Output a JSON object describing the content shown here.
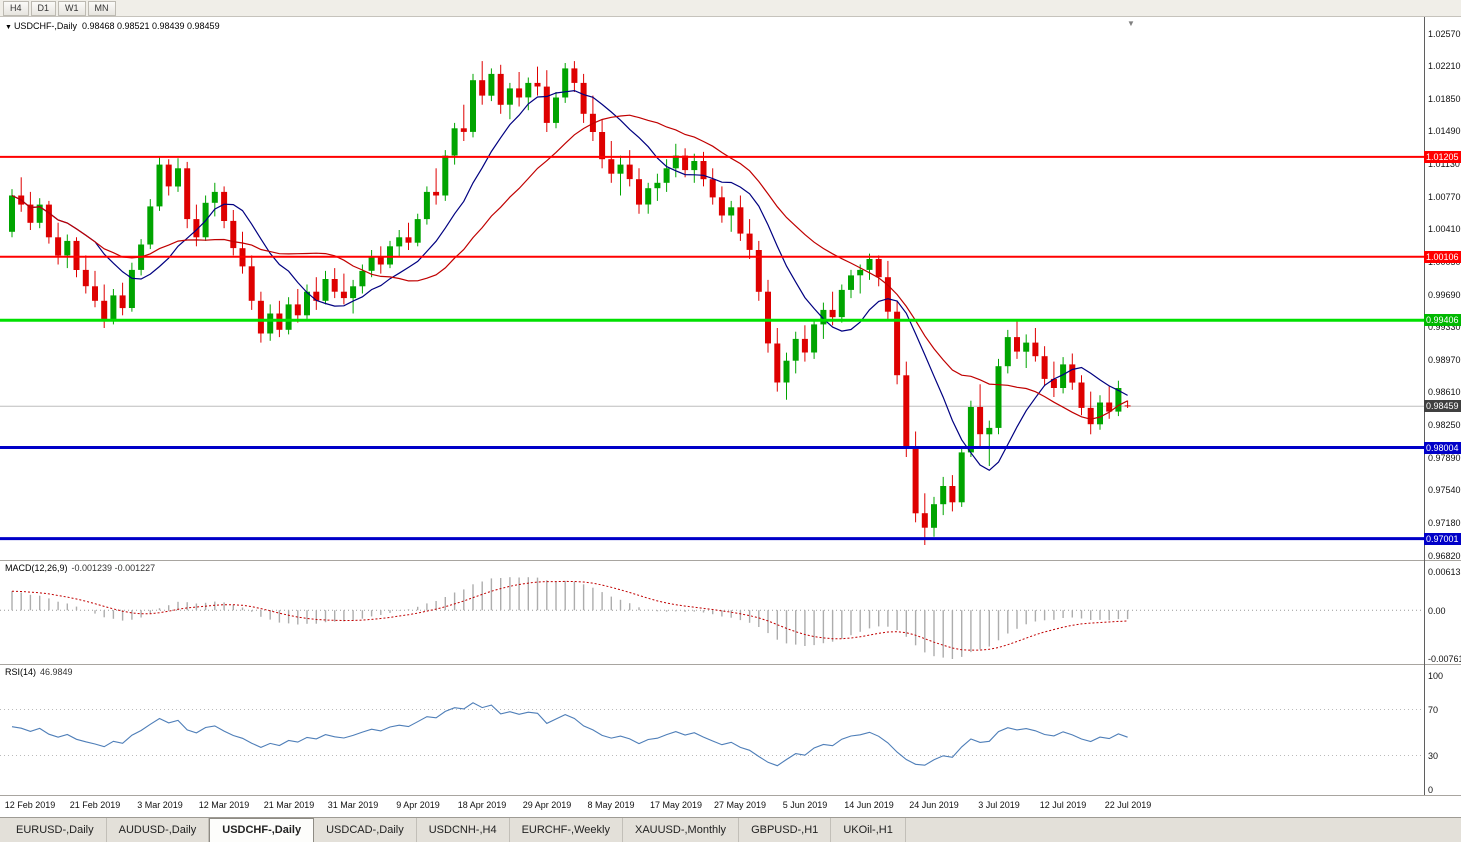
{
  "toolbar": {
    "timeframes": [
      "H4",
      "D1",
      "W1",
      "MN"
    ]
  },
  "main_chart": {
    "collapse_glyph": "▼",
    "shift_glyph": "▼",
    "title_symbol": "USDCHF-,Daily",
    "title_ohlc": "0.98468 0.98521 0.98439 0.98459",
    "up_color": "#00A400",
    "down_color": "#DE0000",
    "ma_fast": {
      "period": 10,
      "color": "#000080"
    },
    "ma_slow": {
      "period": 21,
      "color": "#C00000"
    },
    "price_axis": {
      "max": 1.0257,
      "min": 0.9682,
      "labels": [
        "1.02570",
        "1.02210",
        "1.01850",
        "1.01490",
        "1.01130",
        "1.00770",
        "1.00410",
        "1.00050",
        "0.99690",
        "0.99330",
        "0.98970",
        "0.98610",
        "0.98250",
        "0.97890",
        "0.97540",
        "0.97180",
        "0.96820"
      ]
    },
    "hlines": [
      {
        "price": 1.01205,
        "label": "1.01205",
        "color": "#FF0000",
        "badge_color": "#FF0000",
        "width": 2
      },
      {
        "price": 1.00106,
        "label": "1.00106",
        "color": "#FF0000",
        "badge_color": "#FF0000",
        "width": 2
      },
      {
        "price": 0.99406,
        "label": "0.99406",
        "color": "#00E000",
        "badge_color": "#00B800",
        "width": 3
      },
      {
        "price": 0.98004,
        "label": "0.98004",
        "color": "#0000C8",
        "badge_color": "#0000C8",
        "width": 3
      },
      {
        "price": 0.97001,
        "label": "0.97001",
        "color": "#0000C8",
        "badge_color": "#0000C8",
        "width": 3
      }
    ],
    "current_price": {
      "value": 0.98459,
      "label": "0.98459",
      "badge_color": "#404040",
      "line_color": "#BEBEBE"
    }
  },
  "macd_panel": {
    "label_name": "MACD(12,26,9)",
    "label_values": "-0.001239 -0.001227",
    "fast": 12,
    "slow": 26,
    "signal": 9,
    "scale": [
      "0.00613",
      "0.00",
      "-0.00761"
    ]
  },
  "rsi_panel": {
    "label_name": "RSI(14)",
    "label_value": "46.9849",
    "period": 14,
    "levels": [
      70,
      30
    ],
    "scale": [
      "100",
      "70",
      "30",
      "0"
    ]
  },
  "chart_data": {
    "type": "candlestick",
    "symbol": "USDCHF",
    "timeframe": "Daily",
    "title": "USDCHF-,Daily",
    "x_labels": [
      "12 Feb 2019",
      "21 Feb 2019",
      "3 Mar 2019",
      "12 Mar 2019",
      "21 Mar 2019",
      "31 Mar 2019",
      "9 Apr 2019",
      "18 Apr 2019",
      "29 Apr 2019",
      "8 May 2019",
      "17 May 2019",
      "27 May 2019",
      "5 Jun 2019",
      "14 Jun 2019",
      "24 Jun 2019",
      "3 Jul 2019",
      "12 Jul 2019",
      "22 Jul 2019"
    ],
    "x_label_indices": [
      2,
      9,
      16,
      23,
      30,
      37,
      44,
      51,
      58,
      65,
      72,
      79,
      86,
      93,
      100,
      107,
      114,
      121
    ],
    "ohlc_format": [
      "open",
      "high",
      "low",
      "close"
    ],
    "ohlc": [
      [
        1.0038,
        1.0085,
        1.0032,
        1.0078
      ],
      [
        1.0078,
        1.0098,
        1.006,
        1.0068
      ],
      [
        1.0068,
        1.0082,
        1.004,
        1.0048
      ],
      [
        1.0048,
        1.0075,
        1.0042,
        1.0068
      ],
      [
        1.0068,
        1.0072,
        1.0025,
        1.0032
      ],
      [
        1.0032,
        1.0048,
        1.0002,
        1.0012
      ],
      [
        1.0012,
        1.0035,
        0.9998,
        1.0028
      ],
      [
        1.0028,
        1.0032,
        0.9988,
        0.9996
      ],
      [
        0.9996,
        1.0012,
        0.997,
        0.9978
      ],
      [
        0.9978,
        0.9995,
        0.9955,
        0.9962
      ],
      [
        0.9962,
        0.998,
        0.9932,
        0.9942
      ],
      [
        0.9942,
        0.9975,
        0.9936,
        0.9968
      ],
      [
        0.9968,
        0.9982,
        0.9946,
        0.9954
      ],
      [
        0.9954,
        1.0004,
        0.995,
        0.9996
      ],
      [
        0.9996,
        1.003,
        0.999,
        1.0024
      ],
      [
        1.0024,
        1.0074,
        1.0019,
        1.0066
      ],
      [
        1.0066,
        1.0121,
        1.0061,
        1.0112
      ],
      [
        1.0112,
        1.0118,
        1.0078,
        1.0088
      ],
      [
        1.0088,
        1.0119,
        1.0082,
        1.0108
      ],
      [
        1.0108,
        1.0115,
        1.0042,
        1.0052
      ],
      [
        1.0052,
        1.0068,
        1.0022,
        1.0032
      ],
      [
        1.0032,
        1.0078,
        1.0028,
        1.007
      ],
      [
        1.007,
        1.0092,
        1.0055,
        1.0082
      ],
      [
        1.0082,
        1.0088,
        1.0042,
        1.005
      ],
      [
        1.005,
        1.0062,
        1.0012,
        1.002
      ],
      [
        1.002,
        1.0038,
        0.9992,
        1.0
      ],
      [
        1.0,
        1.0012,
        0.9952,
        0.9962
      ],
      [
        0.9962,
        0.9972,
        0.9916,
        0.9926
      ],
      [
        0.9926,
        0.9958,
        0.9918,
        0.9948
      ],
      [
        0.9948,
        0.9962,
        0.9922,
        0.993
      ],
      [
        0.993,
        0.9966,
        0.9925,
        0.9958
      ],
      [
        0.9958,
        0.9975,
        0.9938,
        0.9946
      ],
      [
        0.9946,
        0.998,
        0.994,
        0.9972
      ],
      [
        0.9972,
        0.9988,
        0.9952,
        0.9962
      ],
      [
        0.9962,
        0.9995,
        0.9958,
        0.9986
      ],
      [
        0.9986,
        0.9998,
        0.9965,
        0.9972
      ],
      [
        0.9972,
        0.9992,
        0.9958,
        0.9965
      ],
      [
        0.9965,
        0.9985,
        0.9948,
        0.9978
      ],
      [
        0.9978,
        1.0002,
        0.997,
        0.9995
      ],
      [
        0.9995,
        1.0018,
        0.9988,
        1.001
      ],
      [
        1.001,
        1.0022,
        0.9992,
        1.0002
      ],
      [
        1.0002,
        1.0028,
        0.9998,
        1.0022
      ],
      [
        1.0022,
        1.004,
        1.001,
        1.0032
      ],
      [
        1.0032,
        1.0048,
        1.0018,
        1.0026
      ],
      [
        1.0026,
        1.0058,
        1.0022,
        1.0052
      ],
      [
        1.0052,
        1.0088,
        1.0046,
        1.0082
      ],
      [
        1.0082,
        1.0108,
        1.0068,
        1.0078
      ],
      [
        1.0078,
        1.0128,
        1.0072,
        1.0122
      ],
      [
        1.0122,
        1.0158,
        1.0112,
        1.0152
      ],
      [
        1.0152,
        1.0178,
        1.0138,
        1.0148
      ],
      [
        1.0148,
        1.0212,
        1.0142,
        1.0205
      ],
      [
        1.0205,
        1.0226,
        1.0178,
        1.0188
      ],
      [
        1.0188,
        1.0218,
        1.0182,
        1.0212
      ],
      [
        1.0212,
        1.0222,
        1.0168,
        1.0178
      ],
      [
        1.0178,
        1.0202,
        1.0162,
        1.0196
      ],
      [
        1.0196,
        1.0214,
        1.0176,
        1.0186
      ],
      [
        1.0186,
        1.0208,
        1.0172,
        1.0202
      ],
      [
        1.0202,
        1.022,
        1.0188,
        1.0198
      ],
      [
        1.0198,
        1.0216,
        1.0148,
        1.0158
      ],
      [
        1.0158,
        1.0192,
        1.0152,
        1.0186
      ],
      [
        1.0186,
        1.0224,
        1.018,
        1.0218
      ],
      [
        1.0218,
        1.0226,
        1.0192,
        1.0202
      ],
      [
        1.0202,
        1.0212,
        1.0158,
        1.0168
      ],
      [
        1.0168,
        1.0188,
        1.0138,
        1.0148
      ],
      [
        1.0148,
        1.0162,
        1.0108,
        1.0118
      ],
      [
        1.0118,
        1.0138,
        1.0092,
        1.0102
      ],
      [
        1.0102,
        1.0122,
        1.0078,
        1.0112
      ],
      [
        1.0112,
        1.0128,
        1.0088,
        1.0096
      ],
      [
        1.0096,
        1.0108,
        1.0058,
        1.0068
      ],
      [
        1.0068,
        1.0092,
        1.0058,
        1.0086
      ],
      [
        1.0086,
        1.0102,
        1.0072,
        1.0092
      ],
      [
        1.0092,
        1.0118,
        1.0082,
        1.0108
      ],
      [
        1.0108,
        1.0135,
        1.0098,
        1.0122
      ],
      [
        1.0122,
        1.013,
        1.0098,
        1.0106
      ],
      [
        1.0106,
        1.0124,
        1.0092,
        1.0116
      ],
      [
        1.0116,
        1.0126,
        1.0088,
        1.0096
      ],
      [
        1.0096,
        1.0108,
        1.0068,
        1.0076
      ],
      [
        1.0076,
        1.0088,
        1.0048,
        1.0056
      ],
      [
        1.0056,
        1.0072,
        1.0038,
        1.0065
      ],
      [
        1.0065,
        1.0078,
        1.0028,
        1.0036
      ],
      [
        1.0036,
        1.0052,
        1.0008,
        1.0018
      ],
      [
        1.0018,
        1.0028,
        0.9962,
        0.9972
      ],
      [
        0.9972,
        0.9985,
        0.9905,
        0.9915
      ],
      [
        0.9915,
        0.9932,
        0.9862,
        0.9872
      ],
      [
        0.9872,
        0.9905,
        0.9853,
        0.9896
      ],
      [
        0.9896,
        0.9928,
        0.9882,
        0.992
      ],
      [
        0.992,
        0.9935,
        0.9895,
        0.9905
      ],
      [
        0.9905,
        0.9942,
        0.9898,
        0.9936
      ],
      [
        0.9936,
        0.996,
        0.992,
        0.9952
      ],
      [
        0.9952,
        0.9972,
        0.9935,
        0.9944
      ],
      [
        0.9944,
        0.998,
        0.9938,
        0.9974
      ],
      [
        0.9974,
        0.9996,
        0.9965,
        0.999
      ],
      [
        0.999,
        1.0002,
        0.997,
        0.9996
      ],
      [
        0.9996,
        1.0014,
        0.9985,
        1.0008
      ],
      [
        1.0008,
        1.0012,
        0.9978,
        0.9988
      ],
      [
        0.9988,
        1.0006,
        0.9942,
        0.995
      ],
      [
        0.995,
        0.9962,
        0.987,
        0.988
      ],
      [
        0.988,
        0.9895,
        0.979,
        0.98
      ],
      [
        0.98,
        0.9818,
        0.9718,
        0.9728
      ],
      [
        0.9728,
        0.975,
        0.9693,
        0.9712
      ],
      [
        0.9712,
        0.9746,
        0.9702,
        0.9738
      ],
      [
        0.9738,
        0.9768,
        0.9726,
        0.9758
      ],
      [
        0.9758,
        0.977,
        0.973,
        0.974
      ],
      [
        0.974,
        0.9802,
        0.9735,
        0.9795
      ],
      [
        0.9795,
        0.9852,
        0.979,
        0.9845
      ],
      [
        0.9845,
        0.987,
        0.9802,
        0.9815
      ],
      [
        0.9815,
        0.983,
        0.978,
        0.9822
      ],
      [
        0.9822,
        0.9898,
        0.9815,
        0.989
      ],
      [
        0.989,
        0.993,
        0.9882,
        0.9922
      ],
      [
        0.9922,
        0.9942,
        0.9898,
        0.9906
      ],
      [
        0.9906,
        0.9925,
        0.9888,
        0.9916
      ],
      [
        0.9916,
        0.9932,
        0.9895,
        0.9901
      ],
      [
        0.9901,
        0.9912,
        0.9868,
        0.9876
      ],
      [
        0.9876,
        0.9895,
        0.9856,
        0.9866
      ],
      [
        0.9866,
        0.99,
        0.986,
        0.9892
      ],
      [
        0.9892,
        0.9904,
        0.9864,
        0.9872
      ],
      [
        0.9872,
        0.988,
        0.9836,
        0.9844
      ],
      [
        0.9844,
        0.9862,
        0.9815,
        0.9826
      ],
      [
        0.9826,
        0.9858,
        0.982,
        0.985
      ],
      [
        0.985,
        0.9868,
        0.9832,
        0.984
      ],
      [
        0.984,
        0.9874,
        0.9835,
        0.9866
      ],
      [
        0.98468,
        0.98521,
        0.98439,
        0.98459
      ]
    ]
  },
  "tabs": [
    {
      "label": "EURUSD-,Daily",
      "active": false
    },
    {
      "label": "AUDUSD-,Daily",
      "active": false
    },
    {
      "label": "USDCHF-,Daily",
      "active": true
    },
    {
      "label": "USDCAD-,Daily",
      "active": false
    },
    {
      "label": "USDCNH-,H4",
      "active": false
    },
    {
      "label": "EURCHF-,Weekly",
      "active": false
    },
    {
      "label": "XAUUSD-,Monthly",
      "active": false
    },
    {
      "label": "GBPUSD-,H1",
      "active": false
    },
    {
      "label": "UKOil-,H1",
      "active": false
    }
  ]
}
